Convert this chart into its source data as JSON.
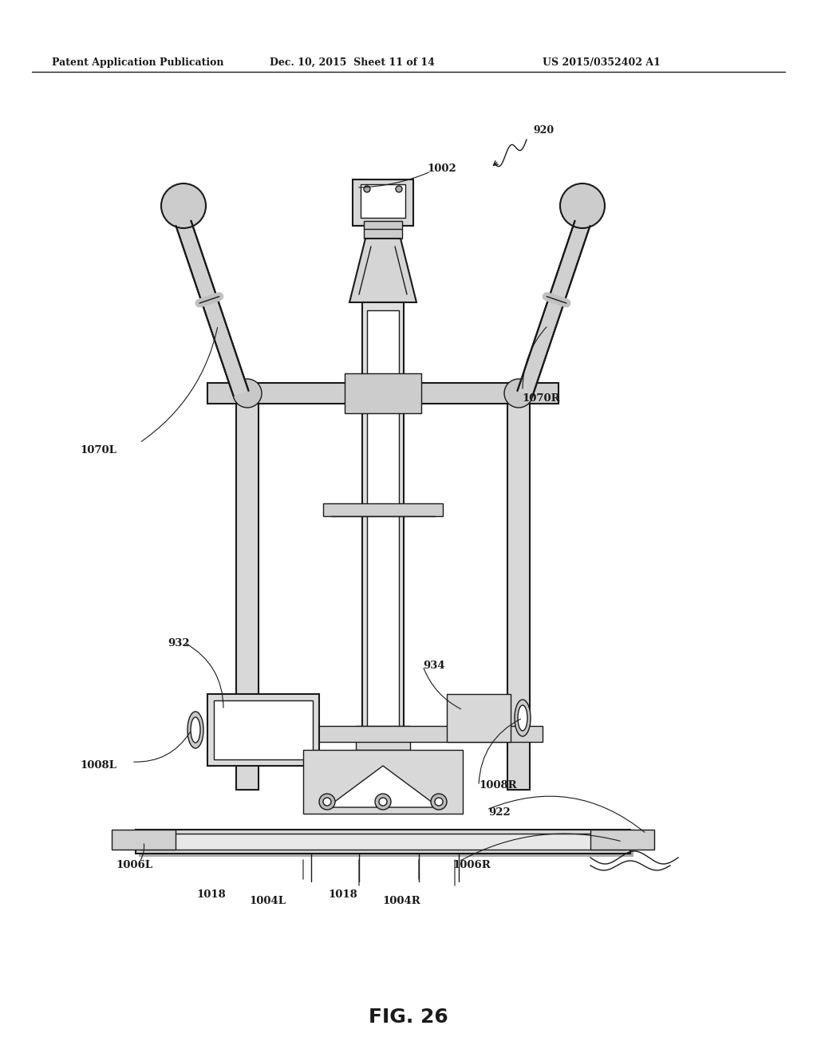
{
  "header_left": "Patent Application Publication",
  "header_mid": "Dec. 10, 2015  Sheet 11 of 14",
  "header_right": "US 2015/0352402 A1",
  "figure_label": "FIG. 26",
  "bg_color": "#ffffff",
  "line_color": "#1a1a1a",
  "gray_light": "#cccccc",
  "gray_mid": "#999999",
  "gray_dark": "#555555"
}
